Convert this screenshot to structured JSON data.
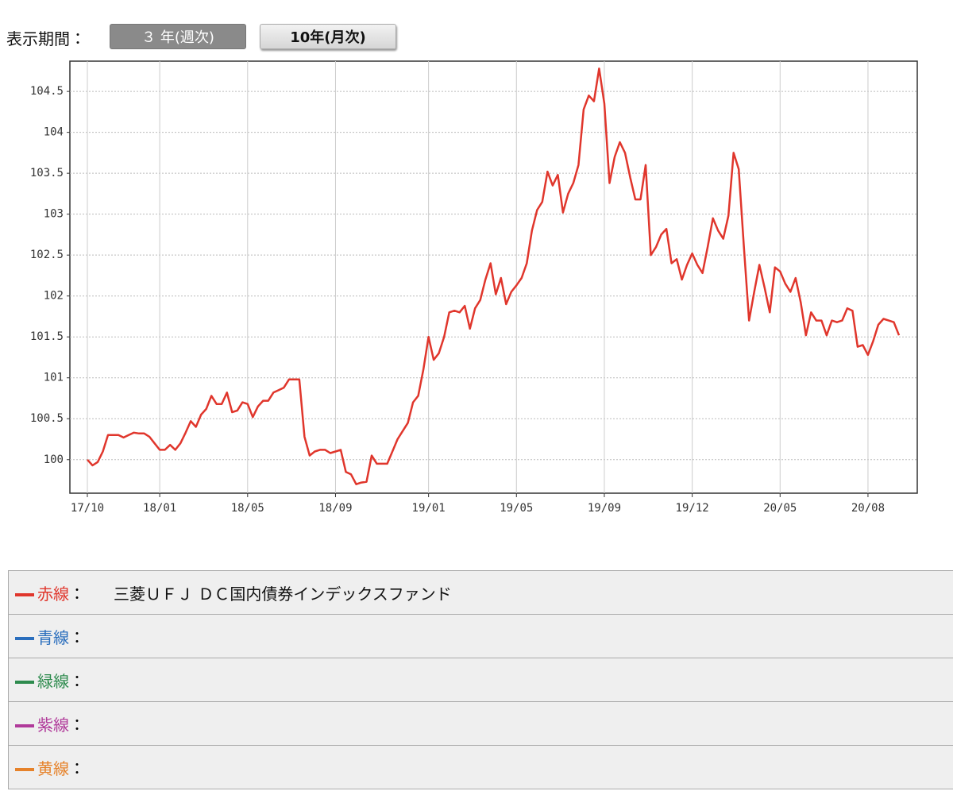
{
  "period_label": "表示期間：",
  "buttons": [
    "３ 年(週次)",
    "10年(月次)"
  ],
  "legend_separator": "：",
  "legend_rows": [
    {
      "label": "赤線",
      "color": "#e0362c"
    },
    {
      "label": "青線",
      "color": "#2a6ebd"
    },
    {
      "label": "緑線",
      "color": "#2e8b4e"
    },
    {
      "label": "紫線",
      "color": "#b03a9a"
    },
    {
      "label": "黄線",
      "color": "#e6822a"
    }
  ],
  "chart_data": {
    "type": "line",
    "categories": [
      "17/10",
      null,
      null,
      null,
      null,
      null,
      null,
      null,
      null,
      null,
      null,
      null,
      null,
      null,
      "18/01",
      null,
      null,
      null,
      null,
      null,
      null,
      null,
      null,
      null,
      null,
      null,
      null,
      null,
      null,
      null,
      null,
      "18/05",
      null,
      null,
      null,
      null,
      null,
      null,
      null,
      null,
      null,
      null,
      null,
      null,
      null,
      null,
      null,
      null,
      "18/09",
      null,
      null,
      null,
      null,
      null,
      null,
      null,
      null,
      null,
      null,
      null,
      null,
      null,
      null,
      null,
      null,
      null,
      "19/01",
      null,
      null,
      null,
      null,
      null,
      null,
      null,
      null,
      null,
      null,
      null,
      null,
      null,
      null,
      null,
      null,
      "19/05",
      null,
      null,
      null,
      null,
      null,
      null,
      null,
      null,
      null,
      null,
      null,
      null,
      null,
      null,
      null,
      null,
      "19/09",
      null,
      null,
      null,
      null,
      null,
      null,
      null,
      null,
      null,
      null,
      null,
      null,
      null,
      null,
      null,
      null,
      "19/12",
      null,
      null,
      null,
      null,
      null,
      null,
      null,
      null,
      null,
      null,
      null,
      null,
      null,
      null,
      null,
      null,
      "20/05",
      null,
      null,
      null,
      null,
      null,
      null,
      null,
      null,
      null,
      null,
      null,
      null,
      null,
      null,
      null,
      null,
      "20/08",
      null,
      null,
      null,
      null,
      null,
      null
    ],
    "series": [
      {
        "name": "三菱ＵＦＪ ＤＣ国内債券インデックスファンド",
        "color": "#e0362c",
        "values": [
          100.0,
          99.93,
          99.97,
          100.1,
          100.3,
          100.3,
          100.3,
          100.27,
          100.3,
          100.33,
          100.32,
          100.32,
          100.28,
          100.2,
          100.12,
          100.12,
          100.18,
          100.12,
          100.2,
          100.33,
          100.47,
          100.4,
          100.55,
          100.62,
          100.78,
          100.68,
          100.68,
          100.82,
          100.58,
          100.6,
          100.7,
          100.68,
          100.52,
          100.65,
          100.72,
          100.72,
          100.82,
          100.85,
          100.88,
          100.98,
          100.98,
          100.98,
          100.28,
          100.05,
          100.1,
          100.12,
          100.12,
          100.08,
          100.1,
          100.12,
          99.85,
          99.82,
          99.7,
          99.72,
          99.73,
          100.05,
          99.95,
          99.95,
          99.95,
          100.1,
          100.25,
          100.35,
          100.45,
          100.7,
          100.78,
          101.1,
          101.5,
          101.22,
          101.3,
          101.5,
          101.8,
          101.82,
          101.8,
          101.88,
          101.6,
          101.85,
          101.95,
          102.2,
          102.4,
          102.02,
          102.22,
          101.9,
          102.05,
          102.13,
          102.22,
          102.4,
          102.8,
          103.05,
          103.15,
          103.52,
          103.35,
          103.48,
          103.02,
          103.25,
          103.38,
          103.6,
          104.28,
          104.45,
          104.38,
          104.78,
          104.35,
          103.38,
          103.7,
          103.88,
          103.75,
          103.45,
          103.18,
          103.18,
          103.6,
          102.5,
          102.6,
          102.75,
          102.82,
          102.4,
          102.45,
          102.2,
          102.38,
          102.52,
          102.38,
          102.28,
          102.6,
          102.95,
          102.8,
          102.7,
          102.98,
          103.75,
          103.55,
          102.6,
          101.7,
          102.05,
          102.38,
          102.1,
          101.8,
          102.35,
          102.3,
          102.15,
          102.05,
          102.22,
          101.92,
          101.52,
          101.8,
          101.7,
          101.7,
          101.52,
          101.7,
          101.68,
          101.7,
          101.85,
          101.82,
          101.38,
          101.4,
          101.28,
          101.45,
          101.65,
          101.72,
          101.7,
          101.68,
          101.52
        ]
      }
    ],
    "ylim": [
      99.59,
      104.87
    ],
    "yticks": [
      100,
      100.5,
      101,
      101.5,
      102,
      102.5,
      103,
      103.5,
      104,
      104.5
    ],
    "grid": true
  }
}
